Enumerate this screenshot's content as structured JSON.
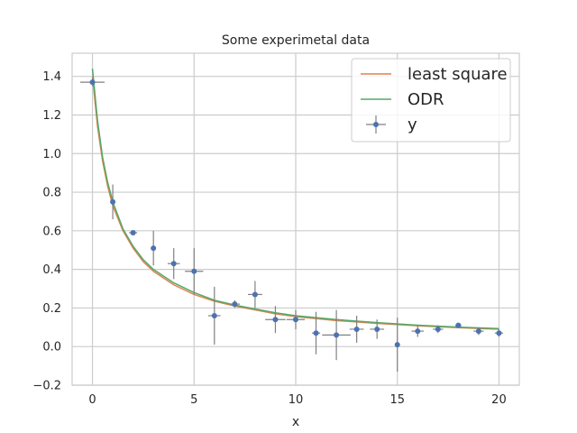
{
  "chart_data": {
    "type": "scatter",
    "title": "Some experimetal data",
    "xlabel": "x",
    "ylabel": "",
    "xlim": [
      -1,
      21
    ],
    "ylim": [
      -0.2,
      1.52
    ],
    "xticks": [
      0,
      5,
      10,
      15,
      20
    ],
    "yticks": [
      -0.2,
      0.0,
      0.2,
      0.4,
      0.6,
      0.8,
      1.0,
      1.2,
      1.4
    ],
    "xtick_labels": [
      "0",
      "5",
      "10",
      "15",
      "20"
    ],
    "ytick_labels": [
      "−0.2",
      "0.0",
      "0.2",
      "0.4",
      "0.6",
      "0.8",
      "1.0",
      "1.2",
      "1.4"
    ],
    "grid": true,
    "legend_position": "top-right",
    "series": [
      {
        "name": "y",
        "kind": "errorbar",
        "color": "#4c72b0",
        "errcolor": "#808080",
        "x": [
          0,
          1,
          2,
          3,
          4,
          5,
          6,
          7,
          8,
          9,
          10,
          11,
          12,
          13,
          14,
          15,
          16,
          17,
          18,
          19,
          20
        ],
        "y": [
          1.37,
          0.75,
          0.59,
          0.51,
          0.43,
          0.39,
          0.16,
          0.22,
          0.27,
          0.14,
          0.14,
          0.07,
          0.06,
          0.09,
          0.09,
          0.01,
          0.08,
          0.09,
          0.11,
          0.08,
          0.07
        ],
        "xerr": [
          0.6,
          0.05,
          0.2,
          0.1,
          0.3,
          0.45,
          0.3,
          0.25,
          0.35,
          0.5,
          0.45,
          0.2,
          0.7,
          0.35,
          0.35,
          0.05,
          0.3,
          0.25,
          0.15,
          0.25,
          0.2
        ],
        "yerr": [
          0.02,
          0.09,
          0.01,
          0.09,
          0.08,
          0.12,
          0.15,
          0.02,
          0.07,
          0.07,
          0.05,
          0.11,
          0.13,
          0.07,
          0.05,
          0.14,
          0.03,
          0.02,
          0.01,
          0.02,
          0.02
        ]
      },
      {
        "name": "least square",
        "kind": "line",
        "color": "#dd8452",
        "x": [
          0,
          0.25,
          0.5,
          0.75,
          1,
          1.5,
          2,
          2.5,
          3,
          4,
          5,
          6,
          7,
          8,
          9,
          10,
          12,
          14,
          16,
          18,
          20
        ],
        "y": [
          1.4,
          1.14,
          0.96,
          0.83,
          0.73,
          0.6,
          0.51,
          0.44,
          0.39,
          0.32,
          0.27,
          0.235,
          0.21,
          0.19,
          0.17,
          0.155,
          0.135,
          0.12,
          0.108,
          0.098,
          0.09
        ]
      },
      {
        "name": "ODR",
        "kind": "line",
        "color": "#55a868",
        "x": [
          0,
          0.25,
          0.5,
          0.75,
          1,
          1.5,
          2,
          2.5,
          3,
          4,
          5,
          6,
          7,
          8,
          9,
          10,
          12,
          14,
          16,
          18,
          20
        ],
        "y": [
          1.44,
          1.17,
          0.98,
          0.85,
          0.75,
          0.61,
          0.52,
          0.45,
          0.4,
          0.33,
          0.28,
          0.24,
          0.215,
          0.195,
          0.175,
          0.16,
          0.14,
          0.124,
          0.111,
          0.101,
          0.093
        ]
      }
    ]
  }
}
